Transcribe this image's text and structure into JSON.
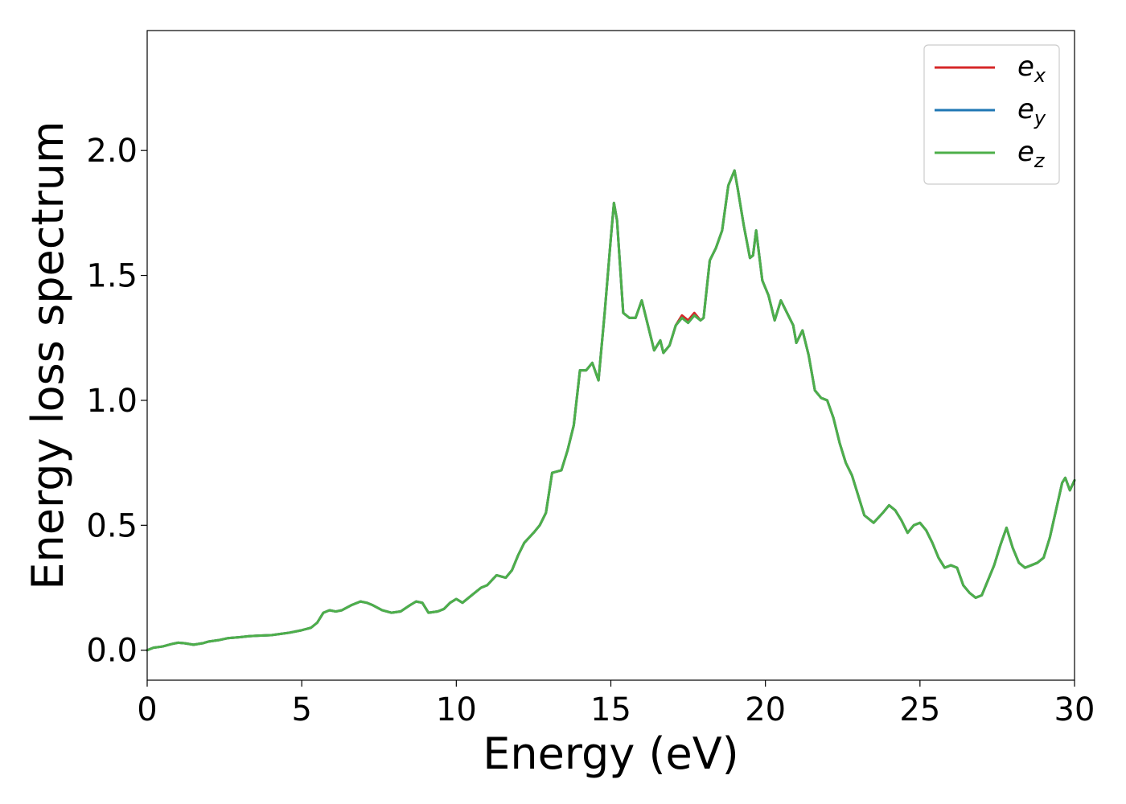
{
  "chart_data": {
    "type": "line",
    "title": "",
    "xlabel": "Energy (eV)",
    "ylabel": "Energy loss spectrum",
    "xlim": [
      0,
      30
    ],
    "ylim": [
      -0.12,
      2.48
    ],
    "grid": false,
    "legend_position": "top-right",
    "x_ticks": [
      0,
      5,
      10,
      15,
      20,
      25,
      30
    ],
    "x_tick_labels": [
      "0",
      "5",
      "10",
      "15",
      "20",
      "25",
      "30"
    ],
    "y_ticks": [
      0.0,
      0.5,
      1.0,
      1.5,
      2.0
    ],
    "y_tick_labels": [
      "0.0",
      "0.5",
      "1.0",
      "1.5",
      "2.0"
    ],
    "legend": [
      {
        "base": "e",
        "sub": "x",
        "color": "#d62728"
      },
      {
        "base": "e",
        "sub": "y",
        "color": "#1f77b4"
      },
      {
        "base": "e",
        "sub": "z",
        "color": "#4daf4a"
      }
    ],
    "x": [
      0.0,
      0.2,
      0.5,
      0.8,
      1.0,
      1.2,
      1.5,
      1.8,
      2.0,
      2.3,
      2.6,
      3.0,
      3.3,
      3.6,
      4.0,
      4.3,
      4.6,
      5.0,
      5.3,
      5.5,
      5.7,
      5.9,
      6.1,
      6.3,
      6.6,
      6.9,
      7.1,
      7.3,
      7.6,
      7.9,
      8.2,
      8.5,
      8.7,
      8.9,
      9.1,
      9.4,
      9.6,
      9.8,
      10.0,
      10.2,
      10.5,
      10.8,
      11.0,
      11.3,
      11.6,
      11.8,
      12.0,
      12.2,
      12.5,
      12.7,
      12.9,
      13.1,
      13.4,
      13.6,
      13.8,
      14.0,
      14.2,
      14.4,
      14.6,
      14.8,
      15.0,
      15.1,
      15.2,
      15.4,
      15.6,
      15.8,
      16.0,
      16.2,
      16.4,
      16.6,
      16.7,
      16.9,
      17.1,
      17.3,
      17.5,
      17.7,
      17.9,
      18.0,
      18.2,
      18.4,
      18.6,
      18.8,
      19.0,
      19.1,
      19.3,
      19.5,
      19.6,
      19.7,
      19.8,
      19.9,
      20.1,
      20.3,
      20.5,
      20.7,
      20.9,
      21.0,
      21.2,
      21.4,
      21.6,
      21.8,
      22.0,
      22.2,
      22.4,
      22.6,
      22.8,
      23.0,
      23.2,
      23.5,
      23.8,
      24.0,
      24.2,
      24.4,
      24.6,
      24.8,
      25.0,
      25.2,
      25.4,
      25.6,
      25.8,
      26.0,
      26.2,
      26.4,
      26.6,
      26.8,
      27.0,
      27.2,
      27.4,
      27.6,
      27.8,
      28.0,
      28.2,
      28.4,
      28.6,
      28.8,
      29.0,
      29.2,
      29.4,
      29.6,
      29.7,
      29.85,
      30.0
    ],
    "series": [
      {
        "name": "e_x",
        "color": "#d62728",
        "values": [
          0.0,
          0.01,
          0.015,
          0.025,
          0.03,
          0.028,
          0.022,
          0.028,
          0.035,
          0.04,
          0.048,
          0.052,
          0.056,
          0.058,
          0.06,
          0.065,
          0.07,
          0.08,
          0.09,
          0.11,
          0.15,
          0.16,
          0.155,
          0.16,
          0.18,
          0.195,
          0.19,
          0.18,
          0.16,
          0.15,
          0.155,
          0.18,
          0.195,
          0.19,
          0.15,
          0.155,
          0.165,
          0.19,
          0.205,
          0.19,
          0.22,
          0.25,
          0.26,
          0.3,
          0.29,
          0.32,
          0.38,
          0.43,
          0.47,
          0.5,
          0.55,
          0.71,
          0.72,
          0.8,
          0.9,
          1.12,
          1.12,
          1.15,
          1.08,
          1.35,
          1.65,
          1.79,
          1.72,
          1.35,
          1.33,
          1.33,
          1.4,
          1.3,
          1.2,
          1.24,
          1.19,
          1.22,
          1.3,
          1.34,
          1.32,
          1.35,
          1.32,
          1.33,
          1.56,
          1.61,
          1.68,
          1.86,
          1.92,
          1.85,
          1.7,
          1.57,
          1.58,
          1.68,
          1.58,
          1.48,
          1.42,
          1.32,
          1.4,
          1.35,
          1.3,
          1.23,
          1.28,
          1.18,
          1.04,
          1.01,
          1.0,
          0.93,
          0.83,
          0.75,
          0.7,
          0.62,
          0.54,
          0.51,
          0.55,
          0.58,
          0.56,
          0.52,
          0.47,
          0.5,
          0.51,
          0.48,
          0.43,
          0.37,
          0.33,
          0.34,
          0.33,
          0.26,
          0.23,
          0.21,
          0.22,
          0.28,
          0.34,
          0.42,
          0.49,
          0.41,
          0.35,
          0.33,
          0.34,
          0.35,
          0.37,
          0.45,
          0.56,
          0.67,
          0.69,
          0.64,
          0.68
        ]
      },
      {
        "name": "e_y",
        "color": "#1f77b4",
        "values": [
          0.0,
          0.01,
          0.015,
          0.025,
          0.03,
          0.028,
          0.022,
          0.028,
          0.035,
          0.04,
          0.048,
          0.052,
          0.056,
          0.058,
          0.06,
          0.065,
          0.07,
          0.08,
          0.09,
          0.11,
          0.15,
          0.16,
          0.155,
          0.16,
          0.18,
          0.195,
          0.19,
          0.18,
          0.16,
          0.15,
          0.155,
          0.18,
          0.195,
          0.19,
          0.15,
          0.155,
          0.165,
          0.19,
          0.205,
          0.19,
          0.22,
          0.25,
          0.26,
          0.3,
          0.29,
          0.32,
          0.38,
          0.43,
          0.47,
          0.5,
          0.55,
          0.71,
          0.72,
          0.8,
          0.9,
          1.12,
          1.12,
          1.15,
          1.08,
          1.35,
          1.65,
          1.79,
          1.72,
          1.35,
          1.33,
          1.33,
          1.4,
          1.3,
          1.2,
          1.24,
          1.19,
          1.22,
          1.3,
          1.33,
          1.31,
          1.34,
          1.32,
          1.33,
          1.56,
          1.61,
          1.68,
          1.86,
          1.92,
          1.85,
          1.7,
          1.57,
          1.58,
          1.68,
          1.58,
          1.48,
          1.42,
          1.32,
          1.4,
          1.35,
          1.3,
          1.23,
          1.28,
          1.18,
          1.04,
          1.01,
          1.0,
          0.93,
          0.83,
          0.75,
          0.7,
          0.62,
          0.54,
          0.51,
          0.55,
          0.58,
          0.56,
          0.52,
          0.47,
          0.5,
          0.51,
          0.48,
          0.43,
          0.37,
          0.33,
          0.34,
          0.33,
          0.26,
          0.23,
          0.21,
          0.22,
          0.28,
          0.34,
          0.42,
          0.49,
          0.41,
          0.35,
          0.33,
          0.34,
          0.35,
          0.37,
          0.45,
          0.56,
          0.67,
          0.69,
          0.64,
          0.68
        ]
      },
      {
        "name": "e_z",
        "color": "#4daf4a",
        "values": [
          0.0,
          0.01,
          0.015,
          0.025,
          0.03,
          0.028,
          0.022,
          0.028,
          0.035,
          0.04,
          0.048,
          0.052,
          0.056,
          0.058,
          0.06,
          0.065,
          0.07,
          0.08,
          0.09,
          0.11,
          0.15,
          0.16,
          0.155,
          0.16,
          0.18,
          0.195,
          0.19,
          0.18,
          0.16,
          0.15,
          0.155,
          0.18,
          0.195,
          0.19,
          0.15,
          0.155,
          0.165,
          0.19,
          0.205,
          0.19,
          0.22,
          0.25,
          0.26,
          0.3,
          0.29,
          0.32,
          0.38,
          0.43,
          0.47,
          0.5,
          0.55,
          0.71,
          0.72,
          0.8,
          0.9,
          1.12,
          1.12,
          1.15,
          1.08,
          1.35,
          1.65,
          1.79,
          1.72,
          1.35,
          1.33,
          1.33,
          1.4,
          1.3,
          1.2,
          1.24,
          1.19,
          1.22,
          1.3,
          1.33,
          1.31,
          1.34,
          1.32,
          1.33,
          1.56,
          1.61,
          1.68,
          1.86,
          1.92,
          1.85,
          1.7,
          1.57,
          1.58,
          1.68,
          1.58,
          1.48,
          1.42,
          1.32,
          1.4,
          1.35,
          1.3,
          1.23,
          1.28,
          1.18,
          1.04,
          1.01,
          1.0,
          0.93,
          0.83,
          0.75,
          0.7,
          0.62,
          0.54,
          0.51,
          0.55,
          0.58,
          0.56,
          0.52,
          0.47,
          0.5,
          0.51,
          0.48,
          0.43,
          0.37,
          0.33,
          0.34,
          0.33,
          0.26,
          0.23,
          0.21,
          0.22,
          0.28,
          0.34,
          0.42,
          0.49,
          0.41,
          0.35,
          0.33,
          0.34,
          0.35,
          0.37,
          0.45,
          0.56,
          0.67,
          0.69,
          0.64,
          0.68
        ]
      }
    ]
  }
}
